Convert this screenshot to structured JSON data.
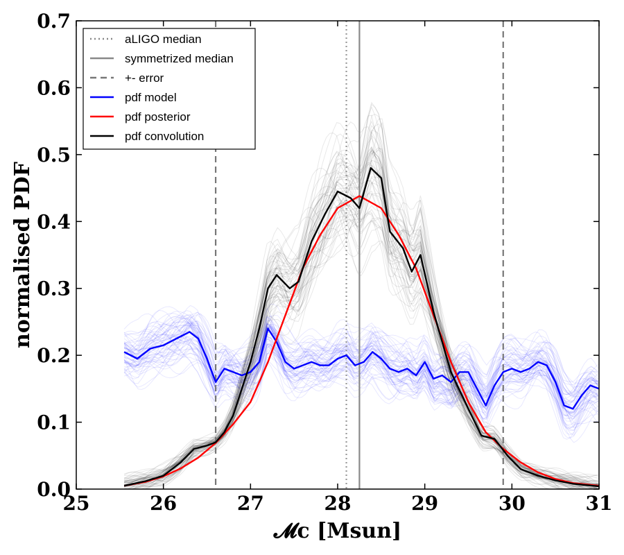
{
  "chart_data": {
    "type": "line",
    "xlabel": "𝓜c [Msun]",
    "ylabel": "normalised PDF",
    "xlim": [
      25,
      31
    ],
    "ylim": [
      0,
      0.7
    ],
    "x_ticks": [
      "25",
      "26",
      "27",
      "28",
      "29",
      "30",
      "31"
    ],
    "y_ticks": [
      "0.0",
      "0.1",
      "0.2",
      "0.3",
      "0.4",
      "0.5",
      "0.6",
      "0.7"
    ],
    "grid": false,
    "legend_position": "top-left",
    "legend": [
      {
        "label": "aLIGO median",
        "color": "#888888",
        "style": "dotted"
      },
      {
        "label": "symmetrized median",
        "color": "#888888",
        "style": "solid"
      },
      {
        "label": "+- error",
        "color": "#777777",
        "style": "dashed"
      },
      {
        "label": "pdf model",
        "color": "#0000ff",
        "style": "solid"
      },
      {
        "label": "pdf posterior",
        "color": "#ff0000",
        "style": "solid"
      },
      {
        "label": "pdf convolution",
        "color": "#000000",
        "style": "solid"
      }
    ],
    "vertical_lines": [
      {
        "name": "aLIGO median",
        "x": 28.1,
        "color": "#999999",
        "style": "dotted"
      },
      {
        "name": "symmetrized median",
        "x": 28.25,
        "color": "#888888",
        "style": "solid"
      },
      {
        "name": "+- error",
        "x": 26.6,
        "color": "#777777",
        "style": "dashed"
      },
      {
        "name": "+- error",
        "x": 29.9,
        "color": "#777777",
        "style": "dashed"
      }
    ],
    "series": [
      {
        "name": "pdf model",
        "color": "#0000ff",
        "x": [
          25.55,
          25.7,
          25.85,
          26.0,
          26.15,
          26.3,
          26.4,
          26.5,
          26.6,
          26.7,
          26.8,
          26.9,
          27.0,
          27.1,
          27.2,
          27.3,
          27.4,
          27.5,
          27.6,
          27.7,
          27.8,
          27.9,
          28.0,
          28.1,
          28.2,
          28.3,
          28.4,
          28.5,
          28.6,
          28.7,
          28.8,
          28.9,
          29.0,
          29.1,
          29.2,
          29.3,
          29.4,
          29.5,
          29.6,
          29.7,
          29.8,
          29.9,
          30.0,
          30.1,
          30.2,
          30.3,
          30.4,
          30.5,
          30.6,
          30.7,
          30.8,
          30.9,
          31.0
        ],
        "y": [
          0.205,
          0.195,
          0.21,
          0.215,
          0.225,
          0.235,
          0.225,
          0.195,
          0.16,
          0.18,
          0.175,
          0.17,
          0.175,
          0.19,
          0.24,
          0.22,
          0.19,
          0.18,
          0.185,
          0.19,
          0.185,
          0.185,
          0.195,
          0.2,
          0.185,
          0.19,
          0.205,
          0.195,
          0.18,
          0.175,
          0.18,
          0.17,
          0.19,
          0.165,
          0.17,
          0.16,
          0.175,
          0.175,
          0.15,
          0.125,
          0.155,
          0.175,
          0.18,
          0.175,
          0.18,
          0.19,
          0.185,
          0.16,
          0.125,
          0.12,
          0.14,
          0.155,
          0.15
        ]
      },
      {
        "name": "pdf posterior",
        "color": "#ff0000",
        "x": [
          25.55,
          25.8,
          26.0,
          26.2,
          26.4,
          26.6,
          26.8,
          27.0,
          27.2,
          27.4,
          27.6,
          27.8,
          28.0,
          28.25,
          28.5,
          28.7,
          28.9,
          29.1,
          29.3,
          29.5,
          29.7,
          29.9,
          30.1,
          30.3,
          30.5,
          30.7,
          31.0
        ],
        "y": [
          0.005,
          0.011,
          0.019,
          0.031,
          0.047,
          0.069,
          0.097,
          0.13,
          0.19,
          0.26,
          0.33,
          0.38,
          0.42,
          0.438,
          0.42,
          0.38,
          0.33,
          0.26,
          0.19,
          0.13,
          0.085,
          0.06,
          0.04,
          0.025,
          0.015,
          0.009,
          0.005
        ]
      },
      {
        "name": "pdf convolution",
        "color": "#000000",
        "x": [
          25.55,
          25.8,
          26.0,
          26.2,
          26.35,
          26.5,
          26.6,
          26.7,
          26.8,
          26.9,
          27.0,
          27.1,
          27.2,
          27.3,
          27.45,
          27.55,
          27.7,
          27.85,
          28.0,
          28.15,
          28.25,
          28.38,
          28.5,
          28.6,
          28.75,
          28.85,
          28.95,
          29.1,
          29.3,
          29.5,
          29.65,
          29.8,
          29.95,
          30.1,
          30.3,
          30.5,
          30.7,
          31.0
        ],
        "y": [
          0.005,
          0.012,
          0.02,
          0.04,
          0.06,
          0.065,
          0.07,
          0.085,
          0.11,
          0.15,
          0.19,
          0.24,
          0.3,
          0.32,
          0.3,
          0.31,
          0.37,
          0.41,
          0.445,
          0.435,
          0.42,
          0.48,
          0.465,
          0.385,
          0.36,
          0.325,
          0.35,
          0.265,
          0.175,
          0.12,
          0.08,
          0.075,
          0.05,
          0.03,
          0.02,
          0.013,
          0.008,
          0.004
        ]
      }
    ]
  }
}
